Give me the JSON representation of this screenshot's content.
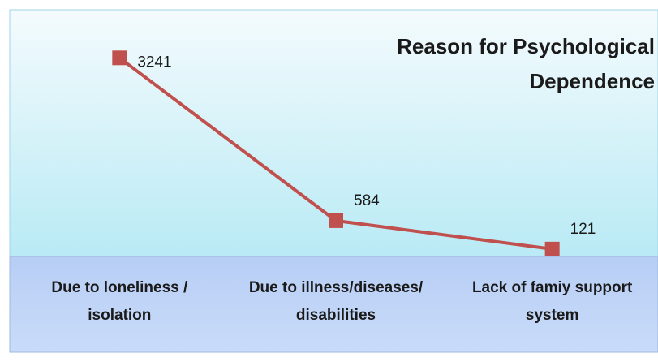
{
  "chart_data": {
    "type": "line",
    "title": "Reason for Psychological Dependence",
    "categories": [
      "Due to loneliness / isolation",
      "Due to illness/diseases/ disabilities",
      "Lack of famiy support system"
    ],
    "series": [
      {
        "name": "Reason for Psychological Dependence",
        "color": "#c0504d",
        "values": [
          3241,
          584,
          121
        ]
      }
    ],
    "ylim": [
      0,
      4000
    ]
  }
}
